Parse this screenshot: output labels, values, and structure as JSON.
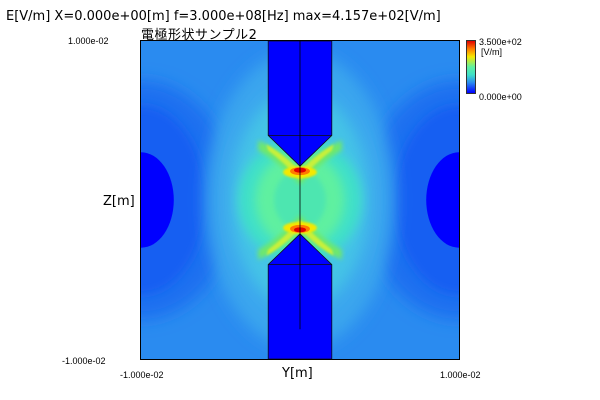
{
  "header": {
    "title": "E[V/m] X=0.000e+00[m] f=3.000e+08[Hz] max=4.157e+02[V/m]",
    "subtitle": "電極形状サンプル2"
  },
  "axes": {
    "y_axis_label": "Z[m]",
    "x_axis_label": "Y[m]",
    "z_top_tick": "1.000e-02",
    "z_bottom_tick": "-1.000e-02",
    "y_left_tick": "-1.000e-02",
    "y_right_tick": "1.000e-02"
  },
  "colorbar": {
    "max_label": "3.500e+02",
    "unit_label": "[V/m]",
    "min_label": "0.000e+00"
  },
  "colors": {
    "electrode": "#0000ff",
    "background_field": "#1e90ff"
  }
}
